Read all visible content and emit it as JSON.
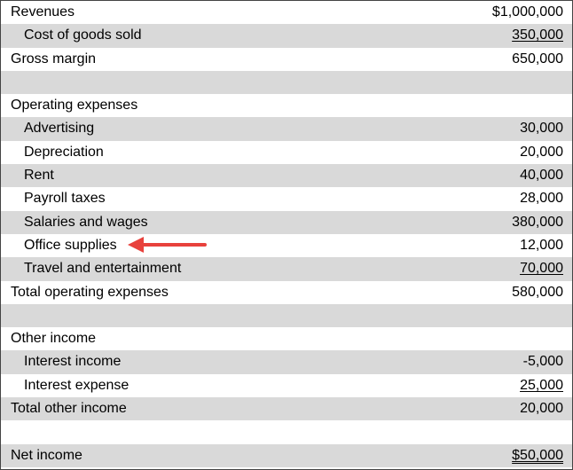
{
  "statement": {
    "rows": [
      {
        "label": "Revenues",
        "value": "$1,000,000"
      },
      {
        "label": "Cost of goods sold",
        "value": "350,000"
      },
      {
        "label": "Gross margin",
        "value": "650,000"
      },
      {
        "label": "",
        "value": ""
      },
      {
        "label": "Operating expenses",
        "value": ""
      },
      {
        "label": "Advertising",
        "value": "30,000"
      },
      {
        "label": "Depreciation",
        "value": "20,000"
      },
      {
        "label": "Rent",
        "value": "40,000"
      },
      {
        "label": "Payroll taxes",
        "value": "28,000"
      },
      {
        "label": "Salaries and wages",
        "value": "380,000"
      },
      {
        "label": "Office supplies",
        "value": "12,000"
      },
      {
        "label": "Travel and entertainment",
        "value": "70,000"
      },
      {
        "label": "Total operating expenses",
        "value": "580,000"
      },
      {
        "label": "",
        "value": ""
      },
      {
        "label": "Other income",
        "value": ""
      },
      {
        "label": "Interest income",
        "value": "-5,000"
      },
      {
        "label": "Interest expense",
        "value": "25,000"
      },
      {
        "label": "Total other income",
        "value": "20,000"
      },
      {
        "label": "",
        "value": ""
      },
      {
        "label": "Net income",
        "value": "$50,000"
      }
    ]
  },
  "colors": {
    "row_shade": "#d9d9d9",
    "arrow": "#e8413c"
  },
  "annotation": {
    "icon": "red-arrow-left-icon",
    "points_to": "Office supplies"
  }
}
